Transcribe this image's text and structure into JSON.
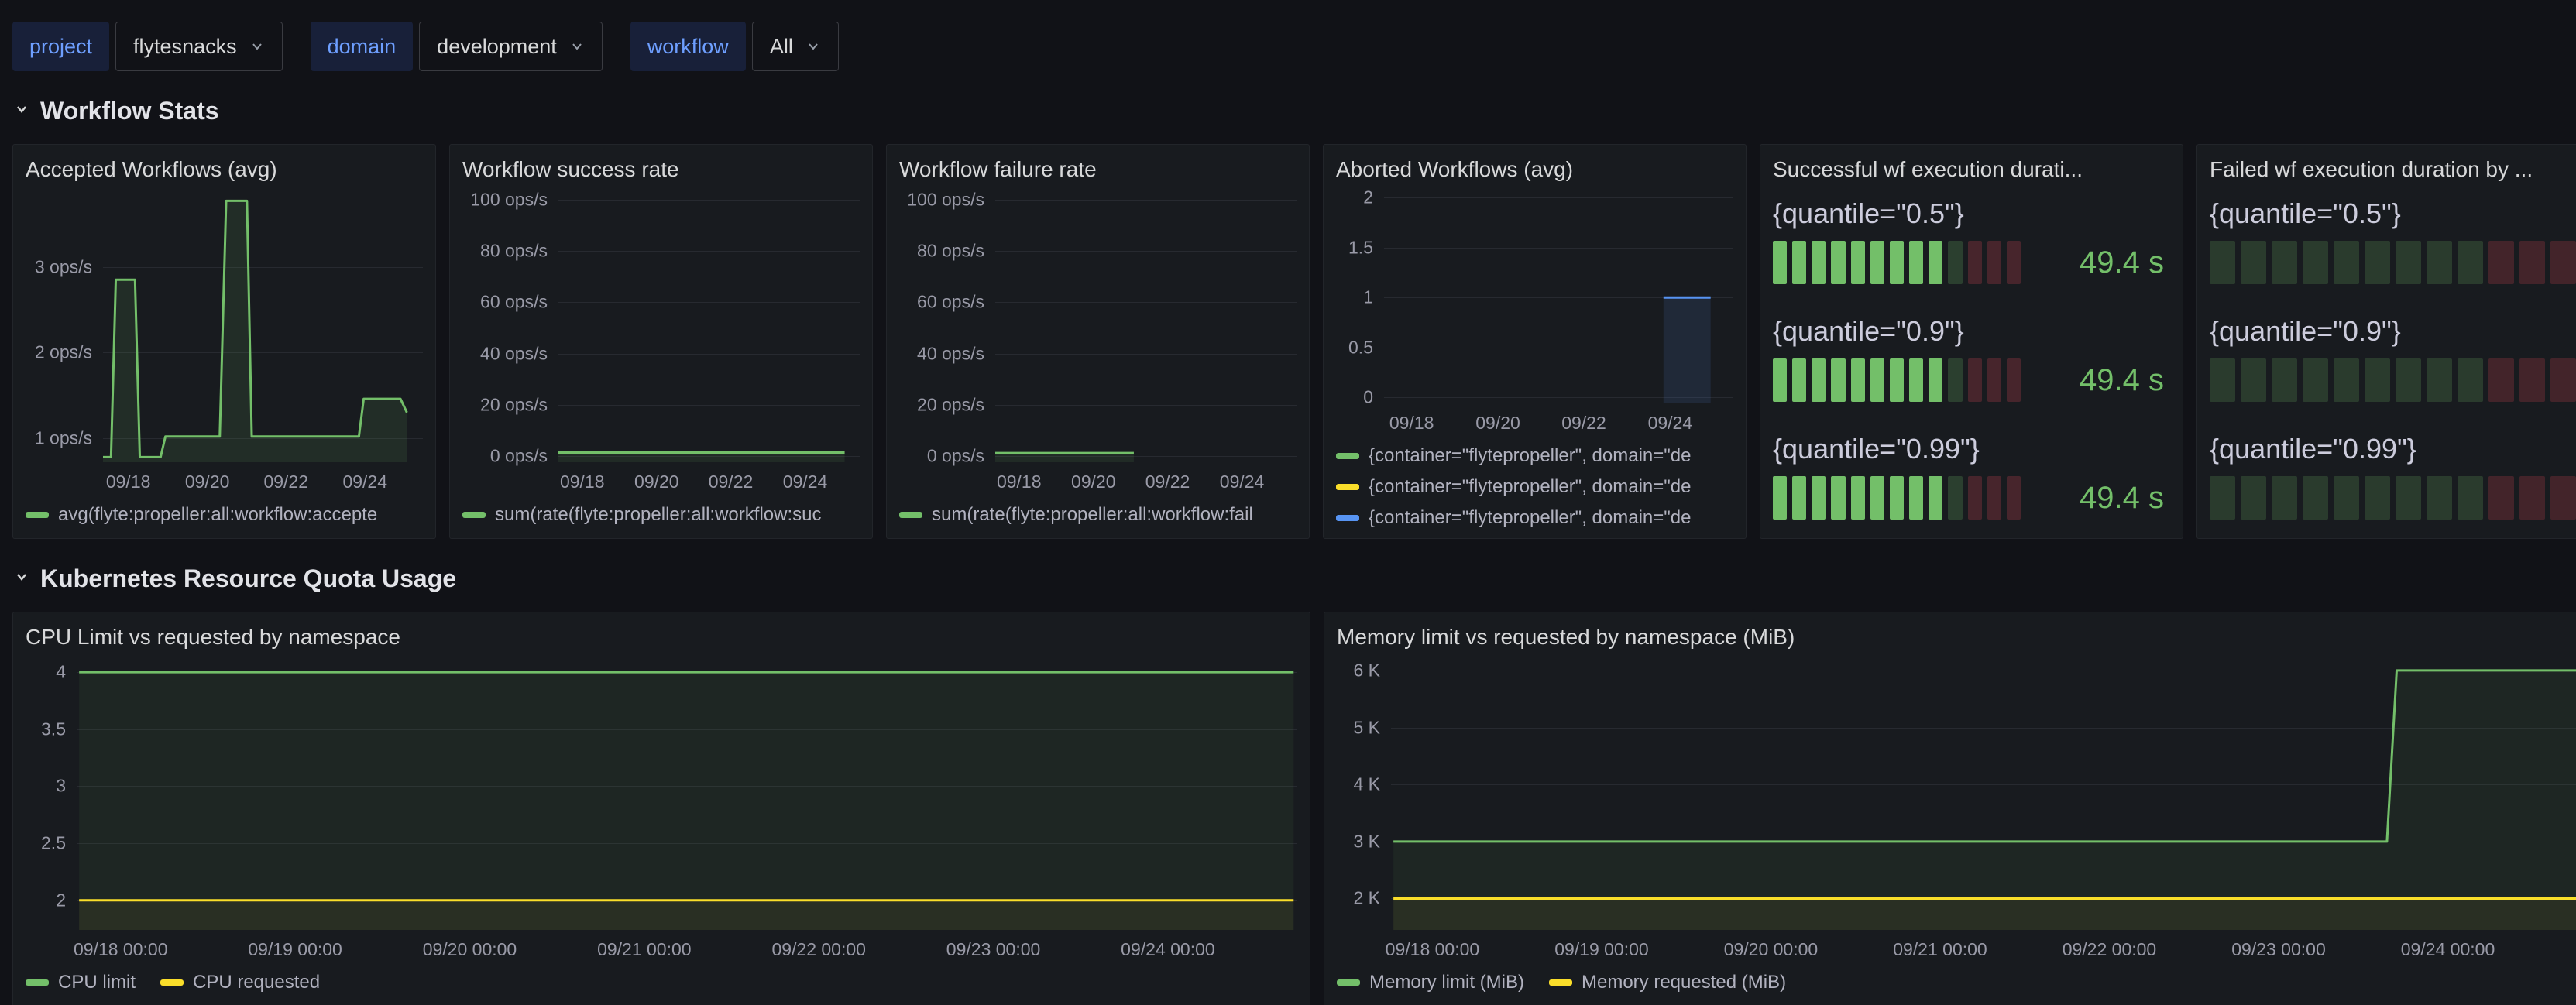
{
  "theme": {
    "page_bg": "#111217",
    "panel_bg": "#181b1f",
    "accent_blue": "#6e9fff",
    "series_green": "#73bf69",
    "series_yellow": "#fade2a",
    "series_blue": "#5794f2",
    "series_red": "#f2495c"
  },
  "topbar": {
    "filters": [
      {
        "label": "project",
        "value": "flytesnacks"
      },
      {
        "label": "domain",
        "value": "development"
      },
      {
        "label": "workflow",
        "value": "All"
      }
    ]
  },
  "sections": {
    "workflow_stats": {
      "title": "Workflow Stats"
    },
    "k8s_quota": {
      "title": "Kubernetes Resource Quota Usage"
    }
  },
  "panels": {
    "accepted": {
      "title": "Accepted Workflows (avg)",
      "legend": [
        {
          "label": "avg(flyte:propeller:all:workflow:accepte",
          "color": "#73bf69"
        }
      ],
      "chart": {
        "type": "line",
        "ylim": [
          0.72,
          3.9
        ],
        "yticks": [
          {
            "v": 3,
            "label": "3 ops/s"
          },
          {
            "v": 2,
            "label": "2 ops/s"
          },
          {
            "v": 1,
            "label": "1 ops/s"
          }
        ],
        "xticks": [
          {
            "x": 0.079,
            "label": "09/18"
          },
          {
            "x": 0.326,
            "label": "09/20"
          },
          {
            "x": 0.572,
            "label": "09/22"
          },
          {
            "x": 0.819,
            "label": "09/24"
          }
        ],
        "series": [
          {
            "name": "avg accepted",
            "color": "#73bf69",
            "fill": "rgba(115,191,105,0.11)",
            "points": [
              [
                0,
                0.78
              ],
              [
                0.025,
                0.78
              ],
              [
                0.04,
                2.85
              ],
              [
                0.1,
                2.85
              ],
              [
                0.115,
                0.78
              ],
              [
                0.18,
                0.78
              ],
              [
                0.195,
                1.02
              ],
              [
                0.365,
                1.02
              ],
              [
                0.385,
                3.77
              ],
              [
                0.45,
                3.77
              ],
              [
                0.465,
                1.02
              ],
              [
                0.8,
                1.02
              ],
              [
                0.815,
                1.46
              ],
              [
                0.93,
                1.46
              ],
              [
                0.95,
                1.3
              ]
            ]
          }
        ]
      }
    },
    "success_rate": {
      "title": "Workflow success rate",
      "legend": [
        {
          "label": "sum(rate(flyte:propeller:all:workflow:suc",
          "color": "#73bf69"
        }
      ],
      "chart": {
        "type": "line",
        "ylim": [
          -2.5,
          104
        ],
        "yticks": [
          {
            "v": 100,
            "label": "100 ops/s"
          },
          {
            "v": 80,
            "label": "80 ops/s"
          },
          {
            "v": 60,
            "label": "60 ops/s"
          },
          {
            "v": 40,
            "label": "40 ops/s"
          },
          {
            "v": 20,
            "label": "20 ops/s"
          },
          {
            "v": 0,
            "label": "0 ops/s"
          }
        ],
        "xticks": [
          {
            "x": 0.079,
            "label": "09/18"
          },
          {
            "x": 0.326,
            "label": "09/20"
          },
          {
            "x": 0.572,
            "label": "09/22"
          },
          {
            "x": 0.819,
            "label": "09/24"
          }
        ],
        "series": [
          {
            "name": "success rate",
            "color": "#73bf69",
            "fill": "rgba(115,191,105,0.1)",
            "points": [
              [
                0,
                1.3
              ],
              [
                0.95,
                1.3
              ]
            ]
          }
        ]
      }
    },
    "failure_rate": {
      "title": "Workflow failure rate",
      "legend": [
        {
          "label": "sum(rate(flyte:propeller:all:workflow:fail",
          "color": "#73bf69"
        }
      ],
      "chart": {
        "type": "line",
        "ylim": [
          -2.5,
          104
        ],
        "yticks": [
          {
            "v": 100,
            "label": "100 ops/s"
          },
          {
            "v": 80,
            "label": "80 ops/s"
          },
          {
            "v": 60,
            "label": "60 ops/s"
          },
          {
            "v": 40,
            "label": "40 ops/s"
          },
          {
            "v": 20,
            "label": "20 ops/s"
          },
          {
            "v": 0,
            "label": "0 ops/s"
          }
        ],
        "xticks": [
          {
            "x": 0.079,
            "label": "09/18"
          },
          {
            "x": 0.326,
            "label": "09/20"
          },
          {
            "x": 0.572,
            "label": "09/22"
          },
          {
            "x": 0.819,
            "label": "09/24"
          }
        ],
        "series": [
          {
            "name": "failure rate",
            "color": "#73bf69",
            "fill": "rgba(115,191,105,0.1)",
            "points": [
              [
                0,
                1.1
              ],
              [
                0.46,
                1.1
              ]
            ]
          }
        ]
      }
    },
    "aborted": {
      "title": "Aborted Workflows (avg)",
      "legend": [
        {
          "label": "{container=\"flytepropeller\", domain=\"de",
          "color": "#73bf69"
        },
        {
          "label": "{container=\"flytepropeller\", domain=\"de",
          "color": "#fade2a"
        },
        {
          "label": "{container=\"flytepropeller\", domain=\"de",
          "color": "#5794f2"
        }
      ],
      "chart": {
        "type": "line",
        "ylim": [
          -0.06,
          2.08
        ],
        "yticks": [
          {
            "v": 2,
            "label": "2"
          },
          {
            "v": 1.5,
            "label": "1.5"
          },
          {
            "v": 1,
            "label": "1"
          },
          {
            "v": 0.5,
            "label": "0.5"
          },
          {
            "v": 0,
            "label": "0"
          }
        ],
        "xticks": [
          {
            "x": 0.079,
            "label": "09/18"
          },
          {
            "x": 0.326,
            "label": "09/20"
          },
          {
            "x": 0.572,
            "label": "09/22"
          },
          {
            "x": 0.819,
            "label": "09/24"
          }
        ],
        "series": [
          {
            "name": "aborted",
            "color": "#5794f2",
            "fill": "rgba(87,148,242,0.12)",
            "points": [
              [
                0.8,
                1
              ],
              [
                0.935,
                1
              ]
            ]
          }
        ]
      }
    },
    "successful_duration": {
      "title": "Successful wf execution durati...",
      "rows": [
        {
          "label": "{quantile=\"0.5\"}",
          "value": "49.4 s"
        },
        {
          "label": "{quantile=\"0.9\"}",
          "value": "49.4 s"
        },
        {
          "label": "{quantile=\"0.99\"}",
          "value": "49.4 s"
        }
      ],
      "cells": [
        {
          "n": 9,
          "color": "#73bf69"
        },
        {
          "n": 1,
          "color": "rgba(115,191,105,0.22)"
        },
        {
          "n": 3,
          "color": "rgba(242,73,92,0.22)"
        }
      ],
      "value_color": "#73bf69"
    },
    "failed_duration": {
      "title": "Failed wf execution duration by ...",
      "rows": [
        {
          "label": "{quantile=\"0.5\"}"
        },
        {
          "label": "{quantile=\"0.9\"}"
        },
        {
          "label": "{quantile=\"0.99\"}"
        }
      ],
      "cells": [
        {
          "n": 9,
          "color": "rgba(115,191,105,0.2)"
        },
        {
          "n": 4,
          "color": "rgba(242,73,92,0.2)"
        }
      ]
    },
    "cpu": {
      "title": "CPU Limit vs requested by namespace",
      "legend": [
        {
          "label": "CPU limit",
          "color": "#73bf69"
        },
        {
          "label": "CPU requested",
          "color": "#fade2a"
        }
      ],
      "chart": {
        "type": "line",
        "ylim": [
          1.74,
          4.13
        ],
        "yticks": [
          {
            "v": 4,
            "label": "4"
          },
          {
            "v": 3.5,
            "label": "3.5"
          },
          {
            "v": 3,
            "label": "3"
          },
          {
            "v": 2.5,
            "label": "2.5"
          },
          {
            "v": 2,
            "label": "2"
          }
        ],
        "xticks": [
          {
            "x": 0.036,
            "label": "09/18 00:00"
          },
          {
            "x": 0.179,
            "label": "09/19 00:00"
          },
          {
            "x": 0.322,
            "label": "09/20 00:00"
          },
          {
            "x": 0.465,
            "label": "09/21 00:00"
          },
          {
            "x": 0.608,
            "label": "09/22 00:00"
          },
          {
            "x": 0.751,
            "label": "09/23 00:00"
          },
          {
            "x": 0.894,
            "label": "09/24 00:00"
          }
        ],
        "series": [
          {
            "name": "CPU limit",
            "color": "#73bf69",
            "fill": "rgba(115,191,105,0.07)",
            "points": [
              [
                0.002,
                4
              ],
              [
                0.997,
                4
              ]
            ]
          },
          {
            "name": "CPU requested",
            "color": "#fade2a",
            "fill": "rgba(250,222,42,0.05)",
            "points": [
              [
                0.002,
                2
              ],
              [
                0.997,
                2
              ]
            ]
          }
        ]
      }
    },
    "memory": {
      "title": "Memory limit vs requested by namespace (MiB)",
      "legend": [
        {
          "label": "Memory limit (MiB)",
          "color": "#73bf69"
        },
        {
          "label": "Memory requested (MiB)",
          "color": "#fade2a"
        }
      ],
      "chart": {
        "type": "line",
        "ylim": [
          1450,
          6230
        ],
        "yticks": [
          {
            "v": 6000,
            "label": "6 K"
          },
          {
            "v": 5000,
            "label": "5 K"
          },
          {
            "v": 4000,
            "label": "4 K"
          },
          {
            "v": 3000,
            "label": "3 K"
          },
          {
            "v": 2000,
            "label": "2 K"
          }
        ],
        "xticks": [
          {
            "x": 0.034,
            "label": "09/18 00:00"
          },
          {
            "x": 0.173,
            "label": "09/19 00:00"
          },
          {
            "x": 0.312,
            "label": "09/20 00:00"
          },
          {
            "x": 0.451,
            "label": "09/21 00:00"
          },
          {
            "x": 0.59,
            "label": "09/22 00:00"
          },
          {
            "x": 0.729,
            "label": "09/23 00:00"
          },
          {
            "x": 0.868,
            "label": "09/24 00:00"
          }
        ],
        "series": [
          {
            "name": "Memory limit (MiB)",
            "color": "#73bf69",
            "fill": "rgba(115,191,105,0.07)",
            "points": [
              [
                0.002,
                3000
              ],
              [
                0.818,
                3000
              ],
              [
                0.826,
                6000
              ],
              [
                0.997,
                6000
              ]
            ]
          },
          {
            "name": "Memory requested (MiB)",
            "color": "#fade2a",
            "fill": "rgba(250,222,42,0.05)",
            "points": [
              [
                0.002,
                2000
              ],
              [
                0.997,
                2000
              ]
            ]
          }
        ]
      }
    }
  }
}
